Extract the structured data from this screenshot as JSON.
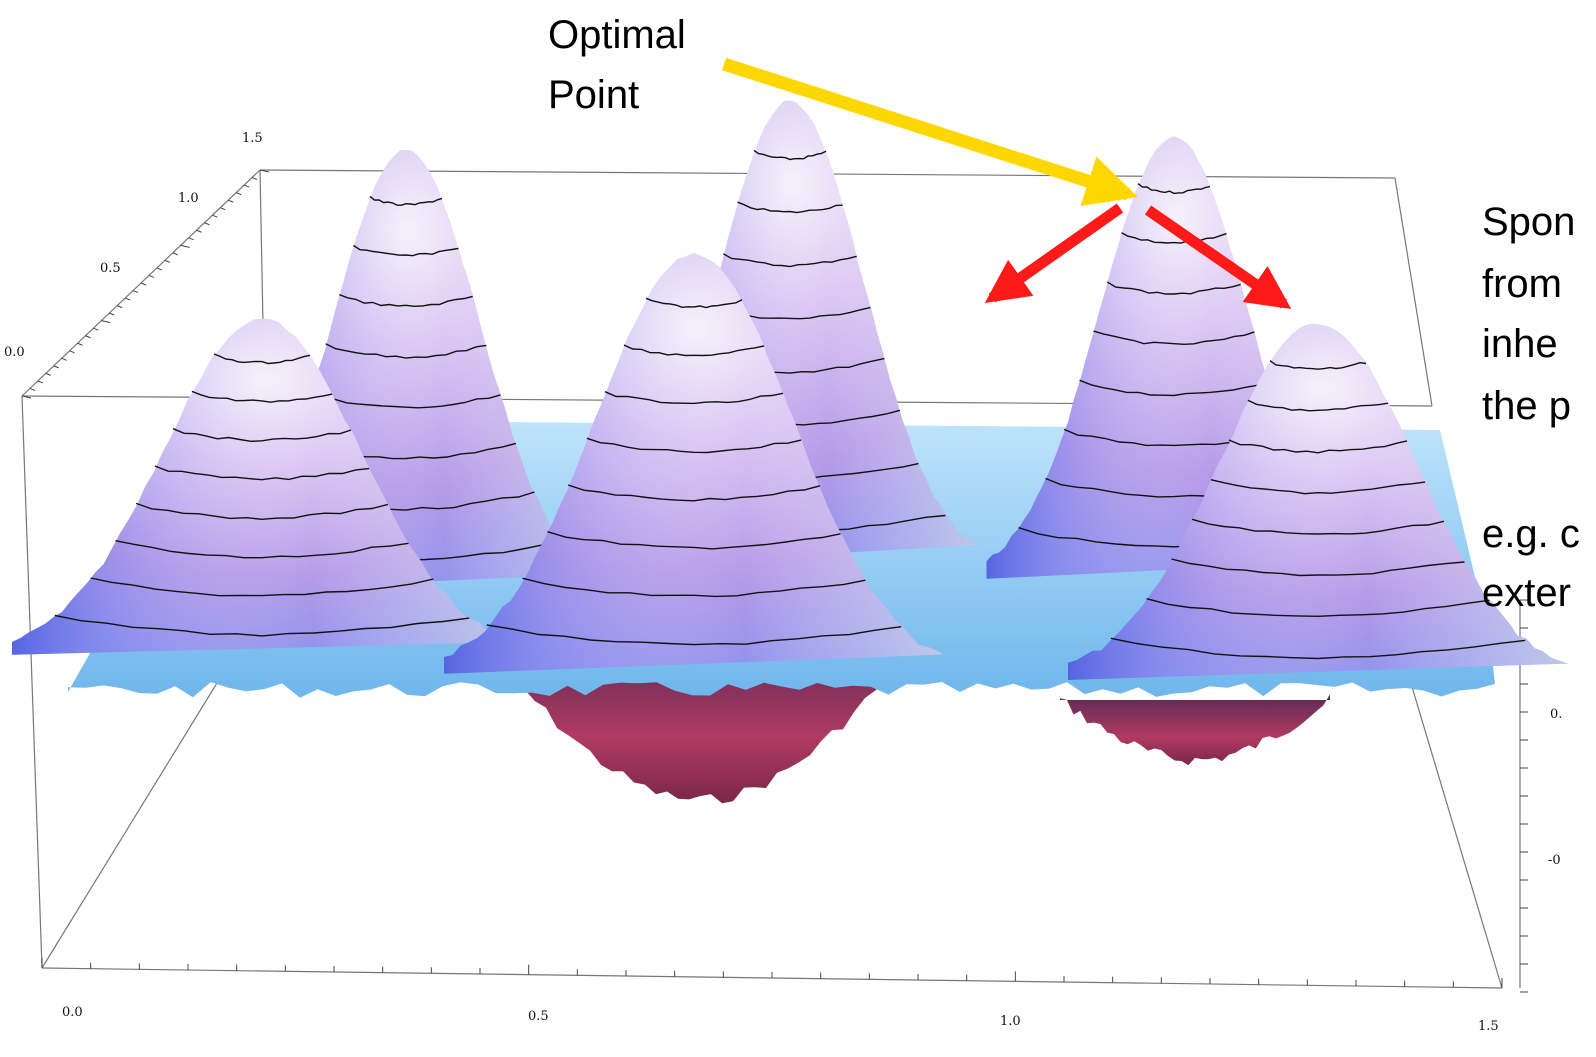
{
  "chart_data": {
    "type": "surface3d",
    "title": "",
    "annotations": {
      "optimal_point": [
        "Optimal",
        "Point"
      ],
      "side_note_lines": [
        "Spon",
        "from",
        "inhe",
        "the p",
        "e.g. c",
        "exter"
      ]
    },
    "x_ticks": [
      "0.0",
      "0.5",
      "1.0",
      "1.5"
    ],
    "y_ticks": [
      "0.0",
      "0.5",
      "1.0",
      "1.5"
    ],
    "z_ticks": [
      "0.",
      "-0"
    ],
    "xlim": [
      0,
      1.5
    ],
    "ylim": [
      0,
      1.5
    ],
    "peaks": [
      {
        "name": "peak-back-left",
        "x": 0.35,
        "y": 1.2,
        "height": 0.95
      },
      {
        "name": "peak-back-center",
        "x": 0.75,
        "y": 1.4,
        "height": 1.0
      },
      {
        "name": "peak-back-right",
        "x": 1.15,
        "y": 1.3,
        "height": 0.95
      },
      {
        "name": "peak-front-left",
        "x": 0.2,
        "y": 0.7,
        "height": 0.8
      },
      {
        "name": "peak-front-center",
        "x": 0.65,
        "y": 0.55,
        "height": 1.0
      },
      {
        "name": "peak-front-right",
        "x": 1.3,
        "y": 0.5,
        "height": 0.85
      }
    ],
    "colors": {
      "surface_top": "#f0e8f8",
      "surface_mid": "#c9b3f0",
      "surface_edge": "#6a78e8",
      "surface_base": "#7ec6f0",
      "underside": "#a0305a",
      "optimal_arrow": "#ffd700",
      "spread_arrows": "#ff1a1a"
    }
  }
}
